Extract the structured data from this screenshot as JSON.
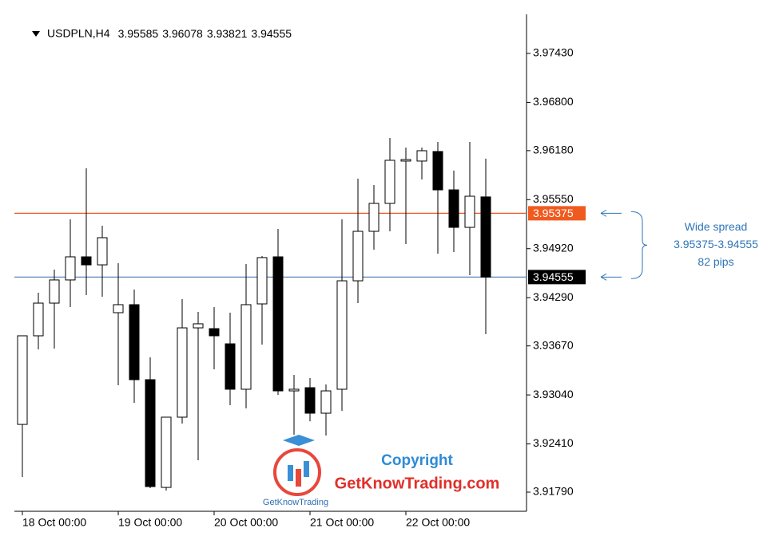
{
  "chart_data": {
    "type": "candlestick",
    "title": "USDPLN,H4",
    "categories": [
      "18 Oct 00:00",
      null,
      null,
      null,
      null,
      null,
      "19 Oct 00:00",
      null,
      null,
      null,
      null,
      null,
      "20 Oct 00:00",
      null,
      null,
      null,
      null,
      null,
      "21 Oct 00:00",
      null,
      null,
      null,
      null,
      null,
      "22 Oct 00:00",
      null,
      null,
      null,
      null,
      null
    ],
    "open": [
      3.92661,
      3.938,
      3.9422,
      3.94518,
      3.94815,
      3.94712,
      3.94097,
      3.942,
      3.93236,
      3.91851,
      3.92754,
      3.93902,
      3.93892,
      3.93697,
      3.93113,
      3.9421,
      3.94815,
      3.93092,
      3.93133,
      3.92805,
      3.93113,
      3.94507,
      3.95143,
      3.95502,
      3.96046,
      3.96046,
      3.96169,
      3.95676,
      3.95194,
      3.95585
    ],
    "high": [
      3.938,
      3.94354,
      3.94651,
      3.95297,
      3.95953,
      3.95215,
      3.94733,
      3.94395,
      3.93523,
      3.92754,
      3.94272,
      3.94107,
      3.94169,
      3.94097,
      3.94723,
      3.94825,
      3.95174,
      3.93297,
      3.93256,
      3.93174,
      3.95297,
      3.9582,
      3.95738,
      3.96343,
      3.9622,
      3.9622,
      3.96292,
      3.95923,
      3.96292,
      3.96078
    ],
    "low": [
      3.91985,
      3.93625,
      3.93636,
      3.94169,
      3.94323,
      3.94302,
      3.93164,
      3.92938,
      3.91841,
      3.9181,
      3.92672,
      3.922,
      3.93369,
      3.92908,
      3.92867,
      3.93687,
      3.93041,
      3.92528,
      3.92702,
      3.92518,
      3.92836,
      3.9422,
      3.94907,
      3.95143,
      3.94979,
      3.9581,
      3.94856,
      3.94877,
      3.94579,
      3.93821
    ],
    "close": [
      3.938,
      3.9422,
      3.94518,
      3.94815,
      3.94712,
      3.95061,
      3.942,
      3.93236,
      3.91862,
      3.92754,
      3.93902,
      3.93954,
      3.938,
      3.93113,
      3.942,
      3.94805,
      3.93092,
      3.93113,
      3.92805,
      3.93092,
      3.94507,
      3.95143,
      3.95502,
      3.96056,
      3.96066,
      3.96179,
      3.95676,
      3.95194,
      3.95594,
      3.94555
    ],
    "up_color": "#ffffff",
    "down_color": "#000000",
    "ylim": [
      3.91544,
      3.97932
    ],
    "yticks": [
      {
        "value": 3.9179,
        "label": "3.91790"
      },
      {
        "value": 3.9241,
        "label": "3.92410"
      },
      {
        "value": 3.9304,
        "label": "3.93040"
      },
      {
        "value": 3.9367,
        "label": "3.93670"
      },
      {
        "value": 3.9429,
        "label": "3.94290"
      },
      {
        "value": 3.9492,
        "label": "3.94920"
      },
      {
        "value": 3.9555,
        "label": "3.95550"
      },
      {
        "value": 3.9618,
        "label": "3.96180"
      },
      {
        "value": 3.968,
        "label": "3.96800"
      },
      {
        "value": 3.9743,
        "label": "3.97430"
      }
    ],
    "price_lines": [
      {
        "value": 3.95375,
        "color": "#f05a1e"
      },
      {
        "value": 3.94555,
        "color": "#5b86b8"
      }
    ],
    "annotation": {
      "lines": [
        "Wide spread",
        "3.95375-3.94555",
        "82 pips"
      ],
      "color": "#2e75b6"
    },
    "watermark": {
      "heading": "Copyright",
      "site": "GetKnowTrading.com",
      "logo": "GetKnowTrading"
    }
  }
}
